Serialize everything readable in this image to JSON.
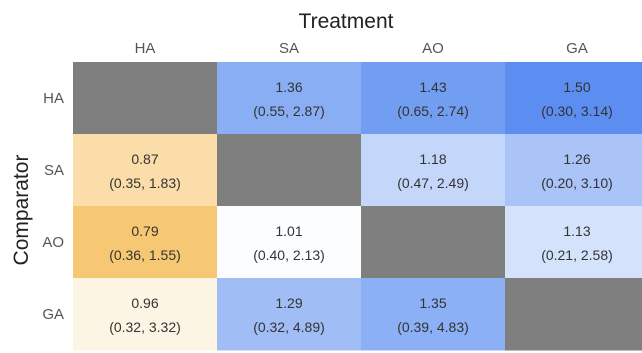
{
  "chart_data": {
    "type": "heatmap",
    "xlabel": "Treatment",
    "ylabel": "Comparator",
    "x_categories": [
      "HA",
      "SA",
      "AO",
      "GA"
    ],
    "y_categories": [
      "HA",
      "SA",
      "AO",
      "GA"
    ],
    "cells": [
      [
        null,
        {
          "value": 1.36,
          "ci": [
            0.55,
            2.87
          ],
          "text": "1.36",
          "ci_text": "(0.55, 2.87)"
        },
        {
          "value": 1.43,
          "ci": [
            0.65,
            2.74
          ],
          "text": "1.43",
          "ci_text": "(0.65, 2.74)"
        },
        {
          "value": 1.5,
          "ci": [
            0.3,
            3.14
          ],
          "text": "1.50",
          "ci_text": "(0.30, 3.14)"
        }
      ],
      [
        {
          "value": 0.87,
          "ci": [
            0.35,
            1.83
          ],
          "text": "0.87",
          "ci_text": "(0.35, 1.83)"
        },
        null,
        {
          "value": 1.18,
          "ci": [
            0.47,
            2.49
          ],
          "text": "1.18",
          "ci_text": "(0.47, 2.49)"
        },
        {
          "value": 1.26,
          "ci": [
            0.2,
            3.1
          ],
          "text": "1.26",
          "ci_text": "(0.20, 3.10)"
        }
      ],
      [
        {
          "value": 0.79,
          "ci": [
            0.36,
            1.55
          ],
          "text": "0.79",
          "ci_text": "(0.36, 1.55)"
        },
        {
          "value": 1.01,
          "ci": [
            0.4,
            2.13
          ],
          "text": "1.01",
          "ci_text": "(0.40, 2.13)"
        },
        null,
        {
          "value": 1.13,
          "ci": [
            0.21,
            2.58
          ],
          "text": "1.13",
          "ci_text": "(0.21, 2.58)"
        }
      ],
      [
        {
          "value": 0.96,
          "ci": [
            0.32,
            3.32
          ],
          "text": "0.96",
          "ci_text": "(0.32, 3.32)"
        },
        {
          "value": 1.29,
          "ci": [
            0.32,
            4.89
          ],
          "text": "1.29",
          "ci_text": "(0.32, 4.89)"
        },
        {
          "value": 1.35,
          "ci": [
            0.39,
            4.83
          ],
          "text": "1.35",
          "ci_text": "(0.39, 4.83)"
        },
        null
      ]
    ],
    "color_scale": {
      "low_color": "#f7c873",
      "mid_color": "#ffffff",
      "high_color": "#5b8ef0",
      "min_value": 0.79,
      "mid_value": 1.0,
      "max_value": 1.5
    },
    "diagonal_color": "#7f7f7f",
    "legend": "none",
    "grid": false
  }
}
